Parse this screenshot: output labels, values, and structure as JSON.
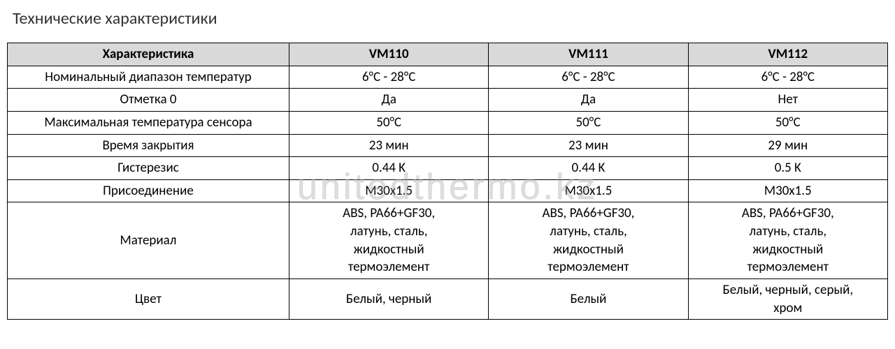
{
  "title": "Технические характеристики",
  "watermark": "unitedthermo.kz",
  "table": {
    "header_bg": "#d9d9d9",
    "border_color": "#000000",
    "font_size": 19,
    "columns": [
      {
        "label": "Характеристика",
        "key": "name"
      },
      {
        "label": "VM110",
        "key": "vm110"
      },
      {
        "label": "VM111",
        "key": "vm111"
      },
      {
        "label": "VM112",
        "key": "vm112"
      }
    ],
    "rows": [
      {
        "name": "Номинальный диапазон температур",
        "vm110": "6°C - 28°C",
        "vm111": "6°C - 28°C",
        "vm112": "6°C - 28°C"
      },
      {
        "name": "Отметка 0",
        "vm110": "Да",
        "vm111": "Да",
        "vm112": "Нет"
      },
      {
        "name": "Максимальная температура сенсора",
        "vm110": "50°C",
        "vm111": "50°C",
        "vm112": "50°C"
      },
      {
        "name": "Время закрытия",
        "vm110": "23 мин",
        "vm111": "23 мин",
        "vm112": "29 мин"
      },
      {
        "name": "Гистерезис",
        "vm110": "0.44 K",
        "vm111": "0.44 K",
        "vm112": "0.5 K"
      },
      {
        "name": "Присоединение",
        "vm110": "M30x1.5",
        "vm111": "M30x1.5",
        "vm112": "M30x1.5"
      },
      {
        "name": "Материал",
        "vm110": "ABS, PA66+GF30,\nлатунь, сталь,\nжидкостный\nтермоэлемент",
        "vm111": "ABS, PA66+GF30,\nлатунь, сталь,\nжидкостный\nтермоэлемент",
        "vm112": "ABS, PA66+GF30,\nлатунь, сталь,\nжидкостный\nтермоэлемент"
      },
      {
        "name": "Цвет",
        "vm110": "Белый, черный",
        "vm111": "Белый",
        "vm112": "Белый, черный, серый,\nхром"
      }
    ]
  }
}
